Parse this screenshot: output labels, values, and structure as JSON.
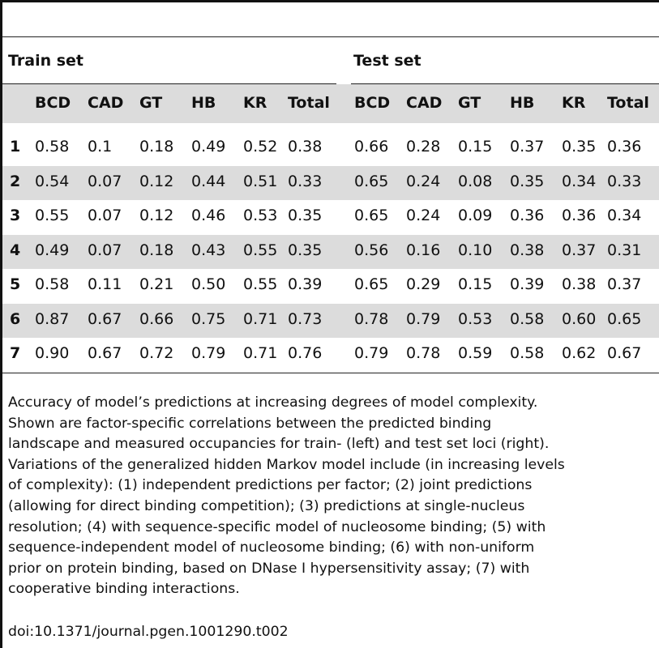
{
  "table": {
    "groups": [
      {
        "label": "Train set"
      },
      {
        "label": "Test set"
      }
    ],
    "columns": [
      "BCD",
      "CAD",
      "GT",
      "HB",
      "KR",
      "Total"
    ],
    "rows": [
      {
        "label": "1",
        "train": [
          "0.58",
          "0.1",
          "0.18",
          "0.49",
          "0.52",
          "0.38"
        ],
        "test": [
          "0.66",
          "0.28",
          "0.15",
          "0.37",
          "0.35",
          "0.36"
        ]
      },
      {
        "label": "2",
        "train": [
          "0.54",
          "0.07",
          "0.12",
          "0.44",
          "0.51",
          "0.33"
        ],
        "test": [
          "0.65",
          "0.24",
          "0.08",
          "0.35",
          "0.34",
          "0.33"
        ]
      },
      {
        "label": "3",
        "train": [
          "0.55",
          "0.07",
          "0.12",
          "0.46",
          "0.53",
          "0.35"
        ],
        "test": [
          "0.65",
          "0.24",
          "0.09",
          "0.36",
          "0.36",
          "0.34"
        ]
      },
      {
        "label": "4",
        "train": [
          "0.49",
          "0.07",
          "0.18",
          "0.43",
          "0.55",
          "0.35"
        ],
        "test": [
          "0.56",
          "0.16",
          "0.10",
          "0.38",
          "0.37",
          "0.31"
        ]
      },
      {
        "label": "5",
        "train": [
          "0.58",
          "0.11",
          "0.21",
          "0.50",
          "0.55",
          "0.39"
        ],
        "test": [
          "0.65",
          "0.29",
          "0.15",
          "0.39",
          "0.38",
          "0.37"
        ]
      },
      {
        "label": "6",
        "train": [
          "0.87",
          "0.67",
          "0.66",
          "0.75",
          "0.71",
          "0.73"
        ],
        "test": [
          "0.78",
          "0.79",
          "0.53",
          "0.58",
          "0.60",
          "0.65"
        ]
      },
      {
        "label": "7",
        "train": [
          "0.90",
          "0.67",
          "0.72",
          "0.79",
          "0.71",
          "0.76"
        ],
        "test": [
          "0.79",
          "0.78",
          "0.59",
          "0.58",
          "0.62",
          "0.67"
        ]
      }
    ]
  },
  "caption": {
    "lines": [
      "Accuracy of model’s predictions at increasing degrees of model complexity.",
      "Shown are factor-specific correlations between the predicted binding",
      "landscape and measured occupancies for train- (left) and test set loci (right).",
      "Variations of the generalized hidden Markov model include (in increasing levels",
      "of complexity): (1) independent predictions per factor; (2) joint predictions",
      "(allowing for direct binding competition); (3) predictions at single-nucleus",
      "resolution; (4) with sequence-specific model of nucleosome binding; (5) with",
      "sequence-independent model of nucleosome binding; (6) with non-uniform",
      "prior on protein binding, based on DNase I hypersensitivity assay; (7) with",
      "cooperative binding interactions."
    ],
    "doi": "doi:10.1371/journal.pgen.1001290.t002"
  }
}
